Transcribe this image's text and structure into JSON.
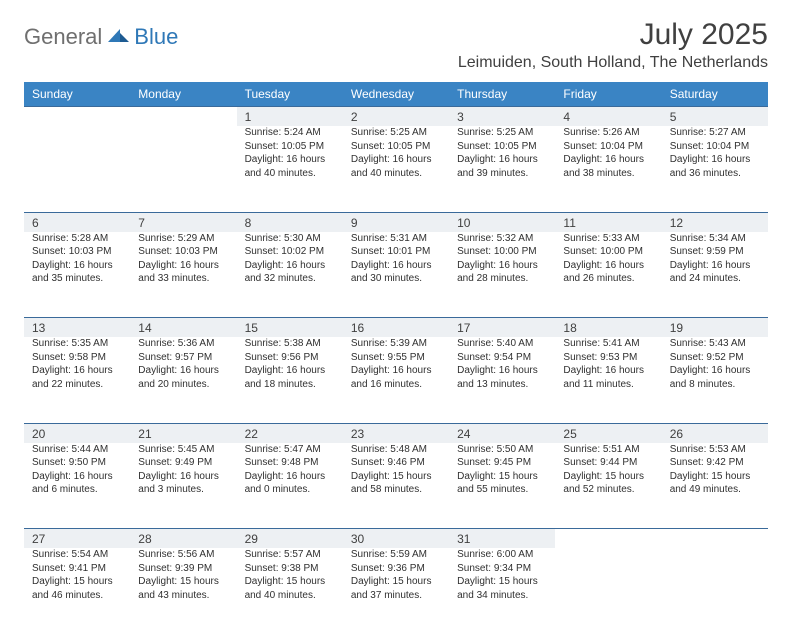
{
  "brand": {
    "part1": "General",
    "part2": "Blue"
  },
  "title": "July 2025",
  "location": "Leimuiden, South Holland, The Netherlands",
  "colors": {
    "header_bg": "#3a84c4",
    "header_text": "#ffffff",
    "daynum_bg": "#edf0f3",
    "rule": "#3a6a9a",
    "text": "#303030",
    "brand_gray": "#6f6f6f",
    "brand_blue": "#2f78b7"
  },
  "day_headers": [
    "Sunday",
    "Monday",
    "Tuesday",
    "Wednesday",
    "Thursday",
    "Friday",
    "Saturday"
  ],
  "weeks": [
    [
      null,
      null,
      {
        "n": "1",
        "sr": "5:24 AM",
        "ss": "10:05 PM",
        "dl": "16 hours and 40 minutes."
      },
      {
        "n": "2",
        "sr": "5:25 AM",
        "ss": "10:05 PM",
        "dl": "16 hours and 40 minutes."
      },
      {
        "n": "3",
        "sr": "5:25 AM",
        "ss": "10:05 PM",
        "dl": "16 hours and 39 minutes."
      },
      {
        "n": "4",
        "sr": "5:26 AM",
        "ss": "10:04 PM",
        "dl": "16 hours and 38 minutes."
      },
      {
        "n": "5",
        "sr": "5:27 AM",
        "ss": "10:04 PM",
        "dl": "16 hours and 36 minutes."
      }
    ],
    [
      {
        "n": "6",
        "sr": "5:28 AM",
        "ss": "10:03 PM",
        "dl": "16 hours and 35 minutes."
      },
      {
        "n": "7",
        "sr": "5:29 AM",
        "ss": "10:03 PM",
        "dl": "16 hours and 33 minutes."
      },
      {
        "n": "8",
        "sr": "5:30 AM",
        "ss": "10:02 PM",
        "dl": "16 hours and 32 minutes."
      },
      {
        "n": "9",
        "sr": "5:31 AM",
        "ss": "10:01 PM",
        "dl": "16 hours and 30 minutes."
      },
      {
        "n": "10",
        "sr": "5:32 AM",
        "ss": "10:00 PM",
        "dl": "16 hours and 28 minutes."
      },
      {
        "n": "11",
        "sr": "5:33 AM",
        "ss": "10:00 PM",
        "dl": "16 hours and 26 minutes."
      },
      {
        "n": "12",
        "sr": "5:34 AM",
        "ss": "9:59 PM",
        "dl": "16 hours and 24 minutes."
      }
    ],
    [
      {
        "n": "13",
        "sr": "5:35 AM",
        "ss": "9:58 PM",
        "dl": "16 hours and 22 minutes."
      },
      {
        "n": "14",
        "sr": "5:36 AM",
        "ss": "9:57 PM",
        "dl": "16 hours and 20 minutes."
      },
      {
        "n": "15",
        "sr": "5:38 AM",
        "ss": "9:56 PM",
        "dl": "16 hours and 18 minutes."
      },
      {
        "n": "16",
        "sr": "5:39 AM",
        "ss": "9:55 PM",
        "dl": "16 hours and 16 minutes."
      },
      {
        "n": "17",
        "sr": "5:40 AM",
        "ss": "9:54 PM",
        "dl": "16 hours and 13 minutes."
      },
      {
        "n": "18",
        "sr": "5:41 AM",
        "ss": "9:53 PM",
        "dl": "16 hours and 11 minutes."
      },
      {
        "n": "19",
        "sr": "5:43 AM",
        "ss": "9:52 PM",
        "dl": "16 hours and 8 minutes."
      }
    ],
    [
      {
        "n": "20",
        "sr": "5:44 AM",
        "ss": "9:50 PM",
        "dl": "16 hours and 6 minutes."
      },
      {
        "n": "21",
        "sr": "5:45 AM",
        "ss": "9:49 PM",
        "dl": "16 hours and 3 minutes."
      },
      {
        "n": "22",
        "sr": "5:47 AM",
        "ss": "9:48 PM",
        "dl": "16 hours and 0 minutes."
      },
      {
        "n": "23",
        "sr": "5:48 AM",
        "ss": "9:46 PM",
        "dl": "15 hours and 58 minutes."
      },
      {
        "n": "24",
        "sr": "5:50 AM",
        "ss": "9:45 PM",
        "dl": "15 hours and 55 minutes."
      },
      {
        "n": "25",
        "sr": "5:51 AM",
        "ss": "9:44 PM",
        "dl": "15 hours and 52 minutes."
      },
      {
        "n": "26",
        "sr": "5:53 AM",
        "ss": "9:42 PM",
        "dl": "15 hours and 49 minutes."
      }
    ],
    [
      {
        "n": "27",
        "sr": "5:54 AM",
        "ss": "9:41 PM",
        "dl": "15 hours and 46 minutes."
      },
      {
        "n": "28",
        "sr": "5:56 AM",
        "ss": "9:39 PM",
        "dl": "15 hours and 43 minutes."
      },
      {
        "n": "29",
        "sr": "5:57 AM",
        "ss": "9:38 PM",
        "dl": "15 hours and 40 minutes."
      },
      {
        "n": "30",
        "sr": "5:59 AM",
        "ss": "9:36 PM",
        "dl": "15 hours and 37 minutes."
      },
      {
        "n": "31",
        "sr": "6:00 AM",
        "ss": "9:34 PM",
        "dl": "15 hours and 34 minutes."
      },
      null,
      null
    ]
  ],
  "labels": {
    "sunrise": "Sunrise:",
    "sunset": "Sunset:",
    "daylight": "Daylight:"
  }
}
